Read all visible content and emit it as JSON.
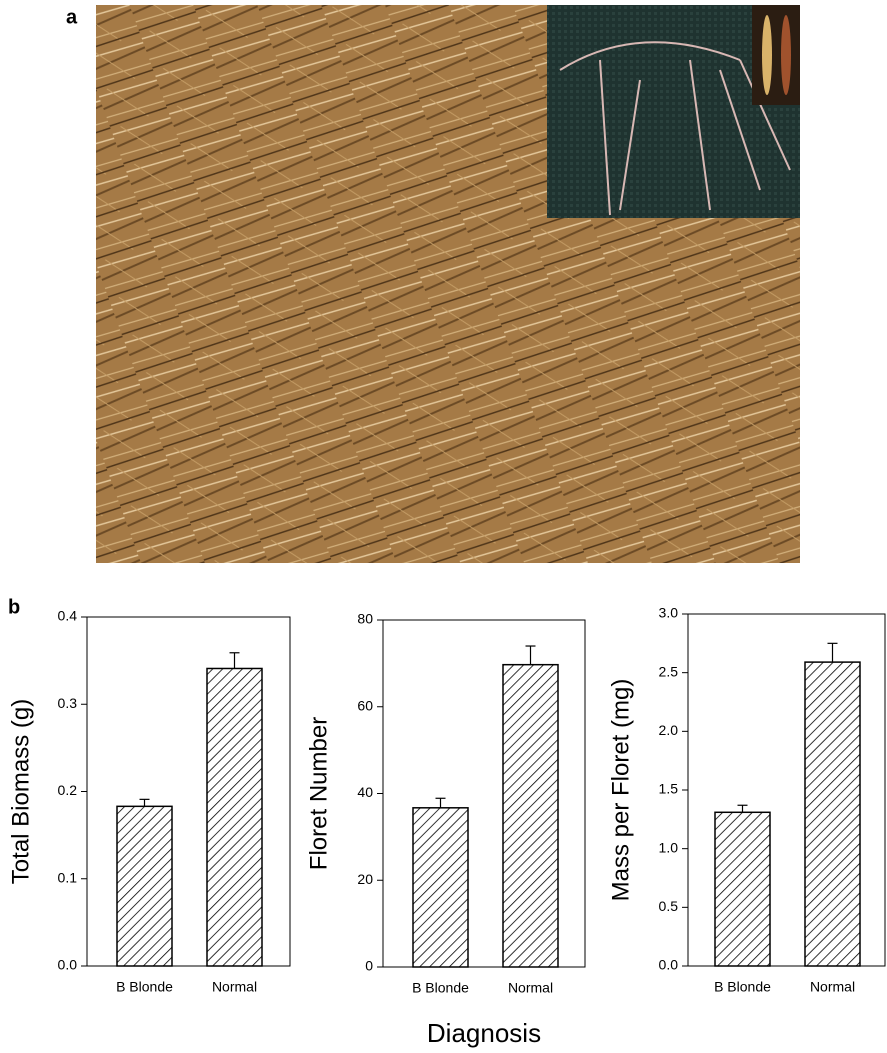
{
  "panel_labels": [
    "a",
    "b"
  ],
  "shared_x_label": "Diagnosis",
  "chart_data": [
    {
      "type": "bar",
      "y_label": "Total Biomass (g)",
      "categories": [
        "B Blonde",
        "Normal"
      ],
      "values": [
        0.183,
        0.341
      ],
      "errors": [
        0.008,
        0.018
      ],
      "ylim": [
        0,
        0.4
      ],
      "yticks": [
        {
          "value": 0,
          "label": "0.0"
        },
        0.1,
        0.2,
        0.3,
        0.4
      ],
      "color": "#000000"
    },
    {
      "type": "bar",
      "y_label": "Floret Number",
      "categories": [
        "B Blonde",
        "Normal"
      ],
      "values": [
        36.7,
        69.7
      ],
      "errors": [
        2.2,
        4.3
      ],
      "ylim": [
        0,
        80
      ],
      "yticks": [
        0,
        20,
        40,
        60,
        80
      ],
      "color": "#000000"
    },
    {
      "type": "bar",
      "y_label": "Mass per Floret (mg)",
      "categories": [
        "B Blonde",
        "Normal"
      ],
      "values": [
        1.31,
        2.59
      ],
      "errors": [
        0.06,
        0.16
      ],
      "ylim": [
        0,
        3
      ],
      "yticks": [
        {
          "value": 0,
          "label": "0.0"
        },
        0.5,
        {
          "value": 1,
          "label": "1.0"
        },
        1.5,
        {
          "value": 2,
          "label": "2.0"
        },
        2.5,
        {
          "value": 3,
          "label": "3.0"
        }
      ],
      "color": "#000000"
    }
  ]
}
